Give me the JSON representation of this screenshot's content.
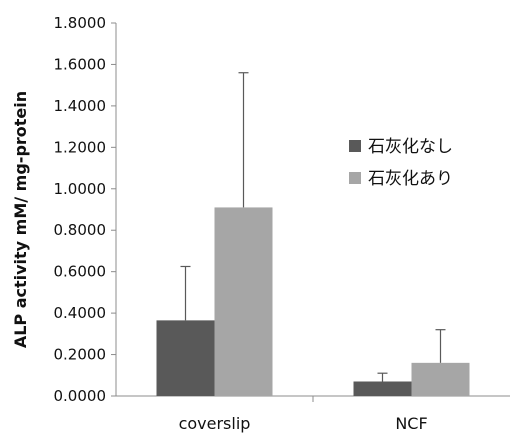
{
  "chart_data": {
    "type": "bar",
    "title": "",
    "xlabel": "",
    "ylabel": "ALP activity mM/ mg-protein",
    "ylim": [
      0,
      1.8
    ],
    "yticks": [
      "0.0000",
      "0.2000",
      "0.4000",
      "0.6000",
      "0.8000",
      "1.0000",
      "1.2000",
      "1.4000",
      "1.6000",
      "1.8000"
    ],
    "categories": [
      "coverslip",
      "NCF"
    ],
    "series": [
      {
        "name": "石灰化なし",
        "color": "#595959",
        "values": [
          0.365,
          0.07
        ],
        "errors": [
          0.26,
          0.04
        ]
      },
      {
        "name": "石灰化あり",
        "color": "#a6a6a6",
        "values": [
          0.91,
          0.16
        ],
        "errors": [
          0.65,
          0.16
        ]
      }
    ],
    "legend_position": "right",
    "grid": false
  }
}
